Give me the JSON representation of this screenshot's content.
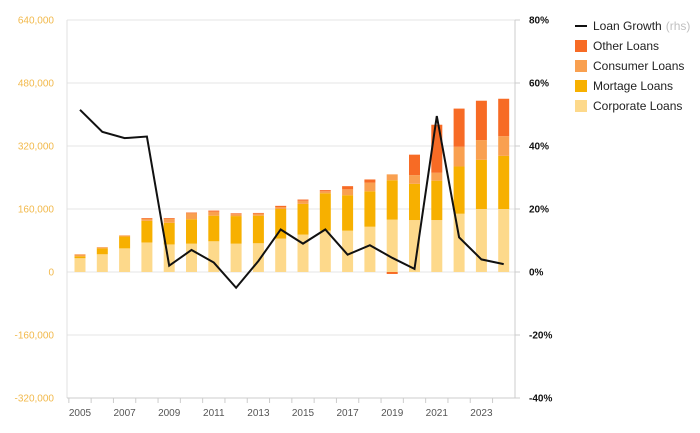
{
  "chart_data": {
    "type": "bar",
    "stacked": true,
    "x": [
      2005,
      2006,
      2007,
      2008,
      2009,
      2010,
      2011,
      2012,
      2013,
      2014,
      2015,
      2016,
      2017,
      2018,
      2019,
      2020,
      2021,
      2022,
      2023,
      2024
    ],
    "x_tick_labels": [
      "2005",
      "2007",
      "2009",
      "2011",
      "2013",
      "2015",
      "2017",
      "2019",
      "2021",
      "2023"
    ],
    "series": [
      {
        "name": "Corporate Loans",
        "axis": "left",
        "color": "#fdd98b",
        "values": [
          35000,
          45000,
          60000,
          75000,
          70000,
          72000,
          78000,
          72000,
          73000,
          85000,
          95000,
          105000,
          105000,
          115000,
          133000,
          132000,
          132000,
          148000,
          160000,
          160000
        ]
      },
      {
        "name": "Mortage Loans",
        "axis": "left",
        "color": "#f7b000",
        "values": [
          5000,
          15000,
          30000,
          55000,
          55000,
          62000,
          65000,
          70000,
          70000,
          75000,
          78000,
          95000,
          90000,
          90000,
          100000,
          92000,
          100000,
          120000,
          125000,
          135000
        ]
      },
      {
        "name": "Consumer Loans",
        "axis": "left",
        "color": "#f9a050",
        "values": [
          5000,
          3000,
          3000,
          5000,
          10000,
          15000,
          10000,
          5000,
          5000,
          5000,
          8000,
          5000,
          15000,
          22000,
          15000,
          22000,
          20000,
          50000,
          50000,
          50000
        ]
      },
      {
        "name": "Other Loans",
        "axis": "left",
        "color": "#f76b25",
        "values": [
          0,
          0,
          0,
          2000,
          2000,
          2000,
          3000,
          2000,
          2000,
          3000,
          3000,
          3000,
          8000,
          8000,
          -5000,
          52000,
          122000,
          97000,
          100000,
          95000
        ]
      },
      {
        "name": "Loan Growth",
        "legend_suffix": "(rhs)",
        "axis": "right",
        "type": "line",
        "color": "#111111",
        "values": [
          51.5,
          44.5,
          42.5,
          43.0,
          2.0,
          7.0,
          3.0,
          -5.0,
          3.5,
          13.5,
          9.0,
          13.5,
          5.5,
          8.5,
          4.5,
          1.0,
          49.5,
          11.0,
          4.0,
          2.5
        ]
      }
    ],
    "y_left": {
      "min": -320000,
      "max": 640000,
      "ticks": [
        640000,
        480000,
        320000,
        160000,
        0,
        -160000,
        -320000
      ],
      "tick_labels": [
        "640,000",
        "480,000",
        "320,000",
        "160,000",
        "0",
        "-160,000",
        "-320,000"
      ]
    },
    "y_right": {
      "min": -40,
      "max": 80,
      "ticks": [
        80,
        60,
        40,
        20,
        0,
        -20,
        -40
      ],
      "tick_labels": [
        "80%",
        "60%",
        "40%",
        "20%",
        "0%",
        "-20%",
        "-40%"
      ]
    },
    "grid": true,
    "legend_position": "top-right"
  }
}
